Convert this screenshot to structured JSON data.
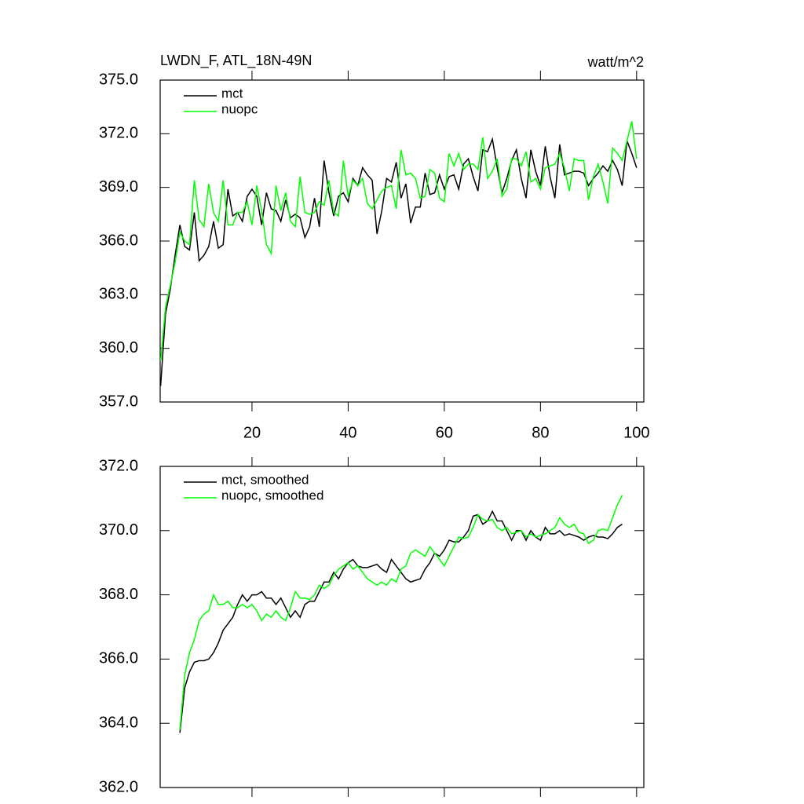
{
  "chart_data": [
    {
      "type": "line",
      "title": "LWDN_F, ATL_18N-49N",
      "units": "watt/m^2",
      "x": [
        1,
        2,
        3,
        4,
        5,
        6,
        7,
        8,
        9,
        10,
        11,
        12,
        13,
        14,
        15,
        16,
        17,
        18,
        19,
        20,
        21,
        22,
        23,
        24,
        25,
        26,
        27,
        28,
        29,
        30,
        31,
        32,
        33,
        34,
        35,
        36,
        37,
        38,
        39,
        40,
        41,
        42,
        43,
        44,
        45,
        46,
        47,
        48,
        49,
        50,
        51,
        52,
        53,
        54,
        55,
        56,
        57,
        58,
        59,
        60,
        61,
        62,
        63,
        64,
        65,
        66,
        67,
        68,
        69,
        70,
        71,
        72,
        73,
        74,
        75,
        76,
        77,
        78,
        79,
        80,
        81,
        82,
        83,
        84,
        85,
        86,
        87,
        88,
        89,
        90,
        91,
        92,
        93,
        94,
        95,
        96,
        97,
        98,
        99,
        100
      ],
      "series": [
        {
          "name": "mct",
          "color": "#000000",
          "values": [
            357.9,
            361.9,
            363.3,
            365.2,
            366.9,
            365.7,
            365.5,
            367.6,
            364.9,
            365.2,
            365.7,
            367.1,
            365.6,
            365.8,
            368.9,
            367.4,
            367.6,
            367.1,
            368.5,
            368.9,
            368.5,
            366.9,
            368.7,
            367.8,
            367.7,
            367.1,
            368.3,
            367.3,
            367.5,
            367.3,
            366.2,
            366.8,
            368.4,
            366.8,
            370.5,
            368.7,
            367.4,
            368.5,
            368.7,
            368.2,
            369.5,
            369.1,
            370.1,
            369.7,
            369.4,
            366.4,
            367.7,
            369.5,
            369.3,
            370.4,
            368.4,
            369.2,
            367.0,
            367.9,
            367.9,
            369.8,
            368.6,
            368.7,
            369.7,
            368.9,
            369.6,
            369.7,
            368.9,
            370.3,
            370.6,
            369.6,
            368.8,
            371.1,
            371.0,
            371.7,
            370.1,
            368.7,
            369.5,
            370.5,
            371.1,
            369.5,
            368.4,
            371.1,
            369.9,
            369.1,
            371.3,
            369.6,
            368.4,
            371.4,
            369.7,
            369.8,
            369.9,
            369.9,
            369.8,
            369.1,
            369.5,
            369.8,
            370.2,
            369.9,
            370.5,
            370.0,
            369.1,
            371.6,
            370.9,
            370.1
          ]
        },
        {
          "name": "nuopc",
          "color": "#00ff00",
          "values": [
            359.3,
            362.3,
            363.5,
            364.8,
            366.5,
            366.0,
            365.8,
            369.4,
            367.2,
            366.8,
            369.2,
            367.6,
            367.1,
            369.4,
            366.9,
            366.9,
            367.6,
            367.6,
            368.2,
            366.9,
            369.1,
            367.7,
            365.8,
            365.3,
            369.1,
            367.7,
            368.7,
            367.1,
            366.8,
            369.6,
            367.6,
            367.5,
            367.6,
            368.2,
            368.0,
            369.4,
            367.6,
            367.4,
            370.5,
            368.5,
            369.4,
            369.1,
            369.5,
            368.1,
            367.8,
            368.3,
            368.8,
            369.0,
            369.1,
            367.8,
            371.1,
            369.7,
            369.8,
            369.5,
            368.4,
            368.5,
            370.0,
            369.8,
            368.4,
            368.2,
            370.9,
            370.2,
            370.9,
            370.0,
            370.3,
            370.3,
            370.0,
            371.8,
            369.5,
            369.9,
            370.6,
            368.5,
            368.9,
            370.6,
            370.6,
            370.2,
            371.0,
            369.3,
            369.5,
            368.9,
            370.1,
            370.2,
            370.3,
            370.9,
            370.1,
            368.8,
            370.6,
            370.5,
            370.5,
            368.3,
            369.6,
            370.3,
            369.3,
            368.1,
            371.2,
            370.9,
            370.5,
            371.6,
            372.7,
            370.6
          ]
        }
      ],
      "xlim": [
        0.9,
        101.5
      ],
      "xticks": [
        20,
        40,
        60,
        80,
        100
      ],
      "ylim": [
        357,
        375
      ],
      "yticks": [
        {
          "value": 357,
          "label": "357.0"
        },
        {
          "value": 360,
          "label": "360.0"
        },
        {
          "value": 363,
          "label": "363.0"
        },
        {
          "value": 366,
          "label": "366.0"
        },
        {
          "value": 369,
          "label": "369.0"
        },
        {
          "value": 372,
          "label": "372.0"
        },
        {
          "value": 375,
          "label": "375.0"
        }
      ]
    },
    {
      "type": "line",
      "x": [
        5,
        6,
        7,
        8,
        9,
        10,
        11,
        12,
        13,
        14,
        15,
        16,
        17,
        18,
        19,
        20,
        21,
        22,
        23,
        24,
        25,
        26,
        27,
        28,
        29,
        30,
        31,
        32,
        33,
        34,
        35,
        36,
        37,
        38,
        39,
        40,
        41,
        42,
        43,
        44,
        45,
        46,
        47,
        48,
        49,
        50,
        51,
        52,
        53,
        54,
        55,
        56,
        57,
        58,
        59,
        60,
        61,
        62,
        63,
        64,
        65,
        66,
        67,
        68,
        69,
        70,
        71,
        72,
        73,
        74,
        75,
        76,
        77,
        78,
        79,
        80,
        81,
        82,
        83,
        84,
        85,
        86,
        87,
        88,
        89,
        90,
        91,
        92,
        93,
        94,
        95,
        96,
        97
      ],
      "series": [
        {
          "name": "mct, smoothed",
          "color": "#000000",
          "values": [
            363.7,
            365.1,
            365.6,
            365.9,
            365.95,
            365.95,
            366.0,
            366.2,
            366.5,
            366.9,
            367.1,
            367.3,
            367.7,
            368.0,
            367.8,
            368.0,
            368.0,
            368.1,
            367.9,
            367.9,
            367.7,
            367.9,
            367.6,
            367.3,
            367.5,
            367.3,
            367.7,
            367.8,
            367.8,
            368.1,
            368.4,
            368.4,
            368.7,
            368.5,
            368.8,
            369.0,
            369.1,
            368.9,
            368.85,
            368.85,
            368.9,
            368.95,
            368.8,
            368.7,
            369.1,
            368.9,
            368.7,
            368.5,
            368.4,
            368.45,
            368.5,
            368.8,
            369.0,
            369.3,
            369.2,
            369.4,
            369.7,
            369.65,
            369.65,
            369.8,
            370.0,
            370.45,
            370.5,
            370.2,
            370.3,
            370.6,
            370.3,
            370.3,
            370.0,
            369.7,
            370.0,
            370.0,
            369.7,
            370.0,
            369.8,
            369.7,
            370.1,
            369.9,
            369.9,
            370.0,
            369.85,
            369.9,
            369.85,
            369.8,
            369.7,
            369.8,
            369.85,
            369.8,
            369.8,
            369.75,
            369.9,
            370.1,
            370.2
          ]
        },
        {
          "name": "nuopc, smoothed",
          "color": "#00ff00",
          "values": [
            363.8,
            365.5,
            366.2,
            366.6,
            367.2,
            367.4,
            367.5,
            368.0,
            367.7,
            367.7,
            367.8,
            367.6,
            367.6,
            367.7,
            367.6,
            367.7,
            367.5,
            367.2,
            367.4,
            367.3,
            367.5,
            367.3,
            367.2,
            367.6,
            368.1,
            367.9,
            367.9,
            367.85,
            368.0,
            368.3,
            368.2,
            368.3,
            368.6,
            368.8,
            368.9,
            369.0,
            368.8,
            368.9,
            368.7,
            368.5,
            368.4,
            368.3,
            368.4,
            368.3,
            368.5,
            368.4,
            368.8,
            368.9,
            369.3,
            369.4,
            369.3,
            369.2,
            369.5,
            369.3,
            369.1,
            368.9,
            369.2,
            369.5,
            369.8,
            369.75,
            369.8,
            370.1,
            370.5,
            370.35,
            370.3,
            370.35,
            370.1,
            370.0,
            370.1,
            369.9,
            369.95,
            370.0,
            369.8,
            369.9,
            369.8,
            369.85,
            369.9,
            370.0,
            370.1,
            370.4,
            370.2,
            370.1,
            370.2,
            369.95,
            369.9,
            369.6,
            369.7,
            370.0,
            370.05,
            370.0,
            370.4,
            370.8,
            371.1
          ]
        }
      ],
      "xlim": [
        0.9,
        101.5
      ],
      "xticks": [
        20,
        40,
        60,
        80,
        100
      ],
      "ylim": [
        362,
        372
      ],
      "yticks": [
        {
          "value": 362,
          "label": "362.0"
        },
        {
          "value": 364,
          "label": "364.0"
        },
        {
          "value": 366,
          "label": "366.0"
        },
        {
          "value": 368,
          "label": "368.0"
        },
        {
          "value": 370,
          "label": "370.0"
        },
        {
          "value": 372,
          "label": "372.0"
        }
      ]
    }
  ]
}
